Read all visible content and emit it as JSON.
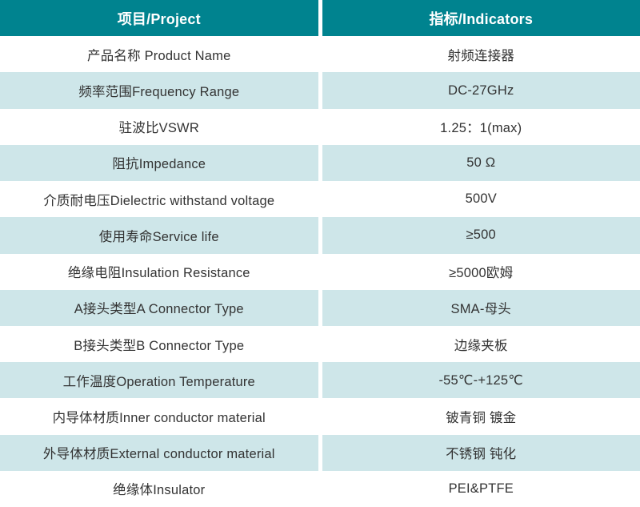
{
  "table": {
    "title": "product-specification-table",
    "colors": {
      "header_bg": "#00838F",
      "header_text": "#FFFFFF",
      "row_bg": "#FFFFFF",
      "row_alt_bg": "#CEE6E9",
      "body_text": "#333333"
    },
    "columns": [
      {
        "label": "项目/Project"
      },
      {
        "label": "指标/Indicators"
      }
    ],
    "rows": [
      {
        "project": "产品名称 Product Name",
        "indicator": "射频连接器"
      },
      {
        "project": "频率范围Frequency Range",
        "indicator": "DC-27GHz"
      },
      {
        "project": "驻波比VSWR",
        "indicator": "1.25：1(max)"
      },
      {
        "project": "阻抗Impedance",
        "indicator": "50 Ω"
      },
      {
        "project": "介质耐电压Dielectric withstand voltage",
        "indicator": "500V"
      },
      {
        "project": "使用寿命Service life",
        "indicator": "≥500"
      },
      {
        "project": "绝缘电阻Insulation Resistance",
        "indicator": "≥5000欧姆"
      },
      {
        "project": "A接头类型A Connector Type",
        "indicator": "SMA-母头"
      },
      {
        "project": "B接头类型B Connector Type",
        "indicator": "边缘夹板"
      },
      {
        "project": "工作温度Operation Temperature",
        "indicator": "-55℃-+125℃"
      },
      {
        "project": "内导体材质Inner conductor material",
        "indicator": "铍青铜 镀金"
      },
      {
        "project": "外导体材质External conductor material",
        "indicator": "不锈钢 钝化"
      },
      {
        "project": "绝缘体Insulator",
        "indicator": "PEI&PTFE"
      }
    ]
  }
}
